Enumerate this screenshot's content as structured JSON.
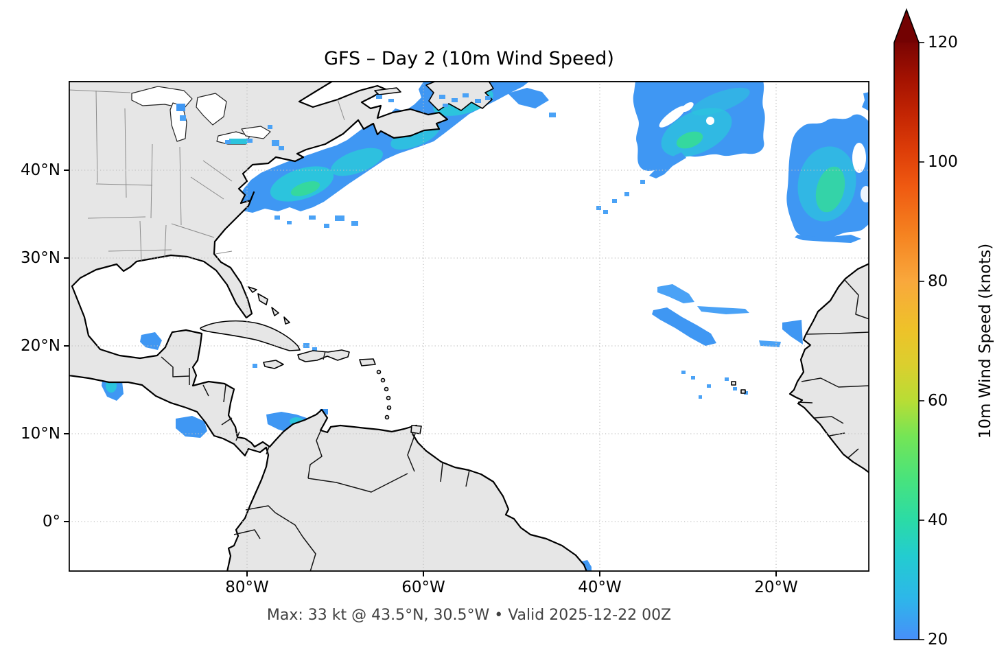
{
  "figure": {
    "title": "GFS – Day 2 (10m Wind Speed)",
    "caption": "Max: 33 kt @ 43.5°N, 30.5°W • Valid 2025-12-22 00Z"
  },
  "axes": {
    "x_ticks": [
      "80°W",
      "60°W",
      "40°W",
      "20°W"
    ],
    "y_ticks": [
      "40°N",
      "30°N",
      "20°N",
      "10°N",
      "0°"
    ]
  },
  "colorbar": {
    "label": "10m Wind Speed (knots)",
    "ticks": [
      "120",
      "100",
      "80",
      "60",
      "40",
      "20"
    ],
    "extend": "max",
    "arrow_color": "#730202",
    "gradient_stops": [
      {
        "value": 20,
        "color": "#478ff9"
      },
      {
        "value": 27,
        "color": "#2db7e9"
      },
      {
        "value": 34,
        "color": "#23ccd0"
      },
      {
        "value": 40,
        "color": "#2bdba6"
      },
      {
        "value": 47,
        "color": "#49e37c"
      },
      {
        "value": 54,
        "color": "#74e556"
      },
      {
        "value": 60,
        "color": "#b8dd35"
      },
      {
        "value": 66,
        "color": "#dbcf2e"
      },
      {
        "value": 72,
        "color": "#eec229"
      },
      {
        "value": 80,
        "color": "#f9a83c"
      },
      {
        "value": 88,
        "color": "#f58220"
      },
      {
        "value": 96,
        "color": "#ef5911"
      },
      {
        "value": 102,
        "color": "#dd3d08"
      },
      {
        "value": 108,
        "color": "#c32503"
      },
      {
        "value": 114,
        "color": "#a31201"
      },
      {
        "value": 120,
        "color": "#7a0403"
      }
    ]
  },
  "colors": {
    "ocean": "#ffffff",
    "land": "#e6e6e6",
    "coastline": "#000000",
    "state_border": "#8a8a8a",
    "country_border": "#141414",
    "grid": "#c0c0c0",
    "wind_blue": "#3f97f3",
    "wind_blue_light": "#4aa2f6",
    "wind_cyan": "#2cc4dd",
    "wind_green": "#35d89e",
    "caption_text": "#414141"
  },
  "chart_data": {
    "type": "heatmap",
    "title": "GFS – Day 2 (10m Wind Speed)",
    "model": "GFS",
    "forecast_day": 2,
    "variable": "10m Wind Speed",
    "units": "knots",
    "valid_time": "2025-12-22 00Z",
    "max_annotation": {
      "value_kt": 33,
      "lat_deg": 43.5,
      "lon_deg": -30.5
    },
    "extent": {
      "lon_range": [
        -100,
        -9
      ],
      "lat_range": [
        -5.7,
        50.2
      ]
    },
    "gridlines": {
      "lons_deg_w": [
        80,
        60,
        40,
        20
      ],
      "lats_deg_n": [
        0,
        10,
        20,
        30,
        40
      ]
    },
    "scale": {
      "min_kt": 20,
      "max_kt": 120,
      "tick_step_kt": 20,
      "extend": "max",
      "shading_threshold_kt": 20,
      "colormap": "blue → cyan → green → yellow → orange → red → dark red (turbo-like)"
    },
    "features": [
      {
        "region": "NW Atlantic swath off US East Coast to Nova Scotia / Newfoundland",
        "approx_bounds": "35–50°N, 75–52°W",
        "peak_kt": "~30"
      },
      {
        "region": "Central North Atlantic storm (contains plotted max 33 kt)",
        "approx_bounds": "40–50°N, 38–27°W",
        "peak_kt": 33
      },
      {
        "region": "NE Atlantic blob near Madeira/Morocco sector",
        "approx_bounds": "31–44°N, 18–9°W",
        "peak_kt": "~31"
      },
      {
        "region": "Subtropical trade-wind streaks",
        "approx_bounds": "21–27°N, 35–24°W",
        "peak_kt": "~25"
      },
      {
        "region": "African coast near Cap Blanc (20°N)",
        "approx_bounds": "19–22°N, 18–16°W",
        "peak_kt": "~24"
      },
      {
        "region": "Southern Caribbean off Venezuela/Colombia coast",
        "approx_bounds": "11–13°N, 74–67°W",
        "peak_kt": "~27"
      },
      {
        "region": "Pacific gap winds (Tehuantepec / Papagayo)",
        "approx_bounds": "10–15°N, 98–88°W",
        "peak_kt": "~28"
      },
      {
        "region": "Cape Verde vicinity scattered cells",
        "approx_bounds": "13–17°N, 27–22°W",
        "peak_kt": "~22"
      },
      {
        "region": "Great Lakes / Gulf of St. Lawrence spots",
        "approx_bounds": "43–49°N, 90–55°W",
        "peak_kt": "~22"
      },
      {
        "region": "NE Brazil coast at south edge",
        "approx_bounds": "5–6°S, 37–34°W",
        "peak_kt": "~22"
      }
    ]
  }
}
